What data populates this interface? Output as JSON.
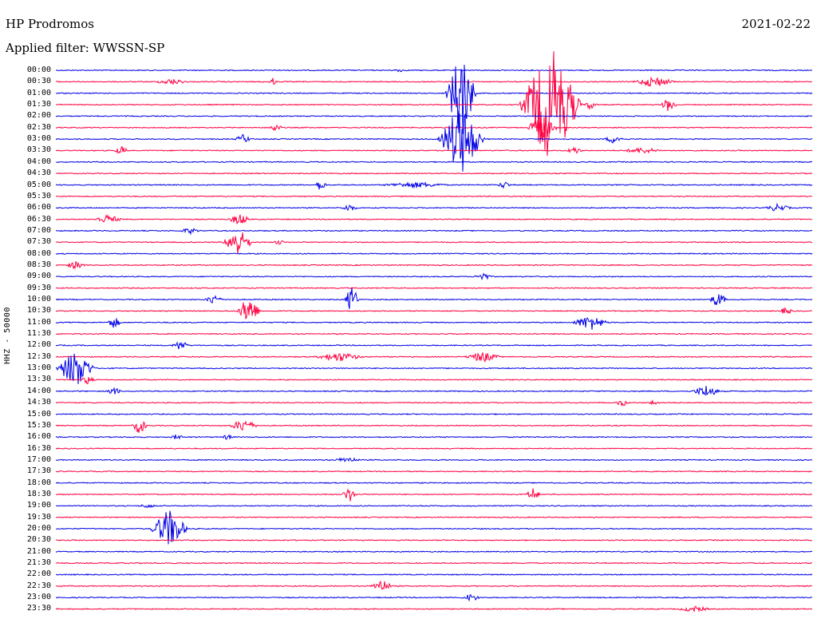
{
  "header": {
    "station": "HP Prodromos",
    "filter": "Applied filter: WWSSN-SP",
    "date": "2021-02-22"
  },
  "channel_label": "HHZ - 50000",
  "colors": {
    "blue": "#0000e6",
    "red": "#ff0040"
  },
  "hours": [
    "00:00",
    "00:30",
    "01:00",
    "01:30",
    "02:00",
    "02:30",
    "03:00",
    "03:30",
    "04:00",
    "04:30",
    "05:00",
    "05:30",
    "06:00",
    "06:30",
    "07:00",
    "07:30",
    "08:00",
    "08:30",
    "09:00",
    "09:30",
    "10:00",
    "10:30",
    "11:00",
    "11:30",
    "12:00",
    "12:30",
    "13:00",
    "13:30",
    "14:00",
    "14:30",
    "15:00",
    "15:30",
    "16:00",
    "16:30",
    "17:00",
    "17:30",
    "18:00",
    "18:30",
    "19:00",
    "19:30",
    "20:00",
    "20:30",
    "21:00",
    "21:30",
    "22:00",
    "22:30",
    "23:00",
    "23:30"
  ]
}
